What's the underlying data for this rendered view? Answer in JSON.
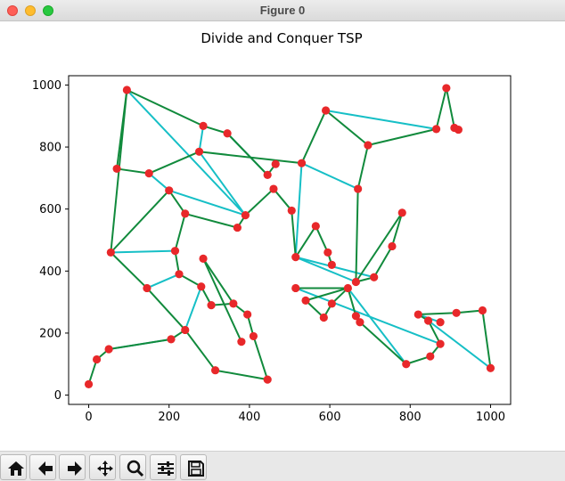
{
  "window": {
    "title": "Figure 0"
  },
  "toolbar": {
    "buttons": [
      {
        "name": "home",
        "icon": "home-icon"
      },
      {
        "name": "back",
        "icon": "back-arrow-icon"
      },
      {
        "name": "forward",
        "icon": "forward-arrow-icon"
      },
      {
        "name": "pan",
        "icon": "move-icon"
      },
      {
        "name": "zoom",
        "icon": "zoom-icon"
      },
      {
        "name": "configure-subplots",
        "icon": "sliders-icon"
      },
      {
        "name": "save",
        "icon": "save-icon"
      }
    ]
  },
  "chart_data": {
    "type": "scatter",
    "title": "Divide and Conquer TSP",
    "xlabel": "",
    "ylabel": "",
    "xlim": [
      -50,
      1050
    ],
    "ylim": [
      -30,
      1030
    ],
    "xticks": [
      0,
      200,
      400,
      600,
      800,
      1000
    ],
    "yticks": [
      0,
      200,
      400,
      600,
      800,
      1000
    ],
    "xtick_labels": [
      "0",
      "200",
      "400",
      "600",
      "800",
      "1000"
    ],
    "ytick_labels": [
      "0",
      "200",
      "400",
      "600",
      "800",
      "1000"
    ],
    "grid": false,
    "colors": {
      "points": "#e8282a",
      "tour_edges": "#118a3c",
      "merge_edges": "#16bfc6"
    },
    "points": [
      [
        95,
        984
      ],
      [
        285,
        868
      ],
      [
        345,
        844
      ],
      [
        70,
        730
      ],
      [
        150,
        715
      ],
      [
        275,
        785
      ],
      [
        445,
        710
      ],
      [
        465,
        745
      ],
      [
        530,
        748
      ],
      [
        590,
        918
      ],
      [
        695,
        806
      ],
      [
        890,
        990
      ],
      [
        865,
        858
      ],
      [
        910,
        862
      ],
      [
        920,
        856
      ],
      [
        200,
        660
      ],
      [
        240,
        585
      ],
      [
        370,
        540
      ],
      [
        390,
        580
      ],
      [
        460,
        665
      ],
      [
        505,
        595
      ],
      [
        515,
        445
      ],
      [
        565,
        545
      ],
      [
        595,
        460
      ],
      [
        605,
        420
      ],
      [
        670,
        665
      ],
      [
        665,
        365
      ],
      [
        710,
        380
      ],
      [
        755,
        480
      ],
      [
        780,
        588
      ],
      [
        55,
        460
      ],
      [
        145,
        345
      ],
      [
        215,
        465
      ],
      [
        225,
        390
      ],
      [
        280,
        350
      ],
      [
        285,
        440
      ],
      [
        305,
        290
      ],
      [
        360,
        295
      ],
      [
        395,
        260
      ],
      [
        410,
        190
      ],
      [
        380,
        172
      ],
      [
        445,
        50
      ],
      [
        315,
        80
      ],
      [
        240,
        210
      ],
      [
        205,
        180
      ],
      [
        50,
        148
      ],
      [
        20,
        115
      ],
      [
        0,
        35
      ],
      [
        515,
        345
      ],
      [
        540,
        305
      ],
      [
        585,
        250
      ],
      [
        605,
        295
      ],
      [
        645,
        345
      ],
      [
        665,
        255
      ],
      [
        675,
        235
      ],
      [
        820,
        260
      ],
      [
        845,
        240
      ],
      [
        875,
        235
      ],
      [
        915,
        265
      ],
      [
        980,
        273
      ],
      [
        790,
        100
      ],
      [
        850,
        125
      ],
      [
        875,
        165
      ],
      [
        1000,
        87
      ]
    ],
    "tour_edges": [
      [
        0,
        1
      ],
      [
        1,
        2
      ],
      [
        2,
        6
      ],
      [
        6,
        7
      ],
      [
        0,
        3
      ],
      [
        3,
        4
      ],
      [
        4,
        5
      ],
      [
        5,
        8
      ],
      [
        8,
        9
      ],
      [
        9,
        10
      ],
      [
        10,
        12
      ],
      [
        11,
        12
      ],
      [
        11,
        13
      ],
      [
        13,
        14
      ],
      [
        10,
        25
      ],
      [
        25,
        26
      ],
      [
        26,
        27
      ],
      [
        27,
        28
      ],
      [
        28,
        29
      ],
      [
        29,
        26
      ],
      [
        15,
        16
      ],
      [
        16,
        17
      ],
      [
        17,
        18
      ],
      [
        18,
        19
      ],
      [
        19,
        20
      ],
      [
        20,
        21
      ],
      [
        21,
        22
      ],
      [
        22,
        23
      ],
      [
        23,
        24
      ],
      [
        15,
        30
      ],
      [
        30,
        31
      ],
      [
        31,
        43
      ],
      [
        43,
        44
      ],
      [
        44,
        45
      ],
      [
        45,
        46
      ],
      [
        46,
        47
      ],
      [
        30,
        0
      ],
      [
        32,
        33
      ],
      [
        33,
        34
      ],
      [
        34,
        36
      ],
      [
        36,
        37
      ],
      [
        37,
        38
      ],
      [
        38,
        39
      ],
      [
        39,
        41
      ],
      [
        41,
        42
      ],
      [
        42,
        43
      ],
      [
        35,
        40
      ],
      [
        35,
        37
      ],
      [
        32,
        16
      ],
      [
        48,
        52
      ],
      [
        52,
        53
      ],
      [
        53,
        54
      ],
      [
        52,
        49
      ],
      [
        49,
        50
      ],
      [
        50,
        51
      ],
      [
        51,
        52
      ],
      [
        55,
        56
      ],
      [
        55,
        58
      ],
      [
        58,
        59
      ],
      [
        59,
        63
      ],
      [
        56,
        62
      ],
      [
        62,
        61
      ],
      [
        61,
        60
      ],
      [
        60,
        54
      ]
    ],
    "merge_edges": [
      [
        1,
        5
      ],
      [
        5,
        18
      ],
      [
        18,
        0
      ],
      [
        4,
        15
      ],
      [
        15,
        18
      ],
      [
        2,
        6
      ],
      [
        9,
        12
      ],
      [
        8,
        25
      ],
      [
        8,
        21
      ],
      [
        21,
        26
      ],
      [
        21,
        27
      ],
      [
        30,
        32
      ],
      [
        31,
        33
      ],
      [
        34,
        43
      ],
      [
        45,
        44
      ],
      [
        48,
        62
      ],
      [
        52,
        60
      ],
      [
        56,
        63
      ],
      [
        57,
        55
      ],
      [
        14,
        13
      ]
    ]
  }
}
